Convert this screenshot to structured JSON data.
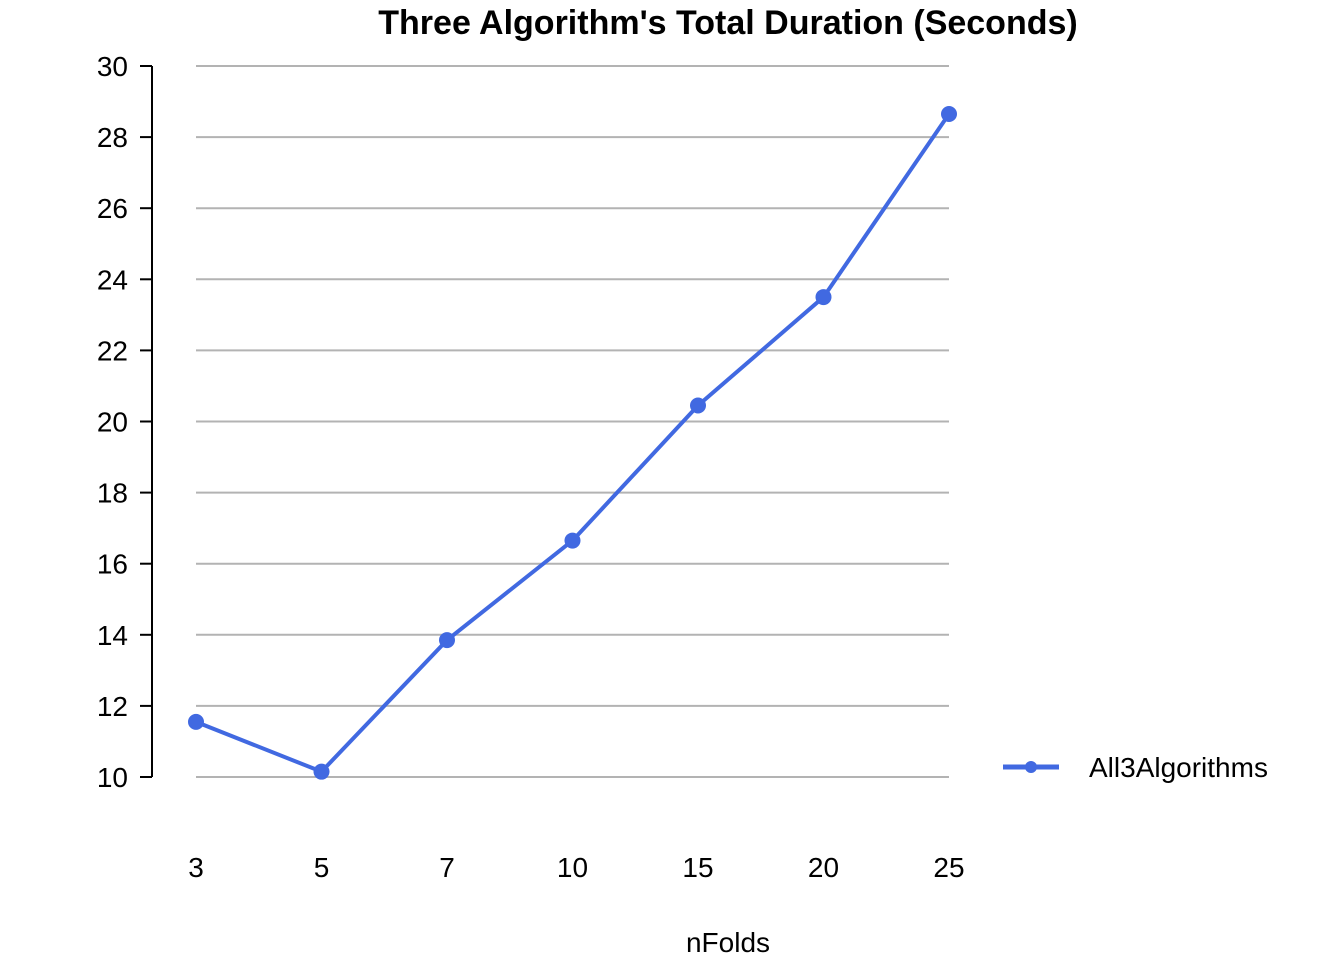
{
  "chart_data": {
    "type": "line",
    "title": "Three Algorithm's Total Duration (Seconds)",
    "xlabel": "nFolds",
    "ylabel": "",
    "categories": [
      "3",
      "5",
      "7",
      "10",
      "15",
      "20",
      "25"
    ],
    "yticks": [
      "10",
      "12",
      "14",
      "16",
      "18",
      "20",
      "22",
      "24",
      "26",
      "28",
      "30"
    ],
    "ylim": [
      10,
      30
    ],
    "grid": true,
    "legend_position": "right",
    "series": [
      {
        "name": "All3Algorithms",
        "color": "#4169E1",
        "values": [
          11.55,
          10.15,
          13.85,
          16.65,
          20.45,
          23.5,
          28.65
        ]
      }
    ]
  }
}
